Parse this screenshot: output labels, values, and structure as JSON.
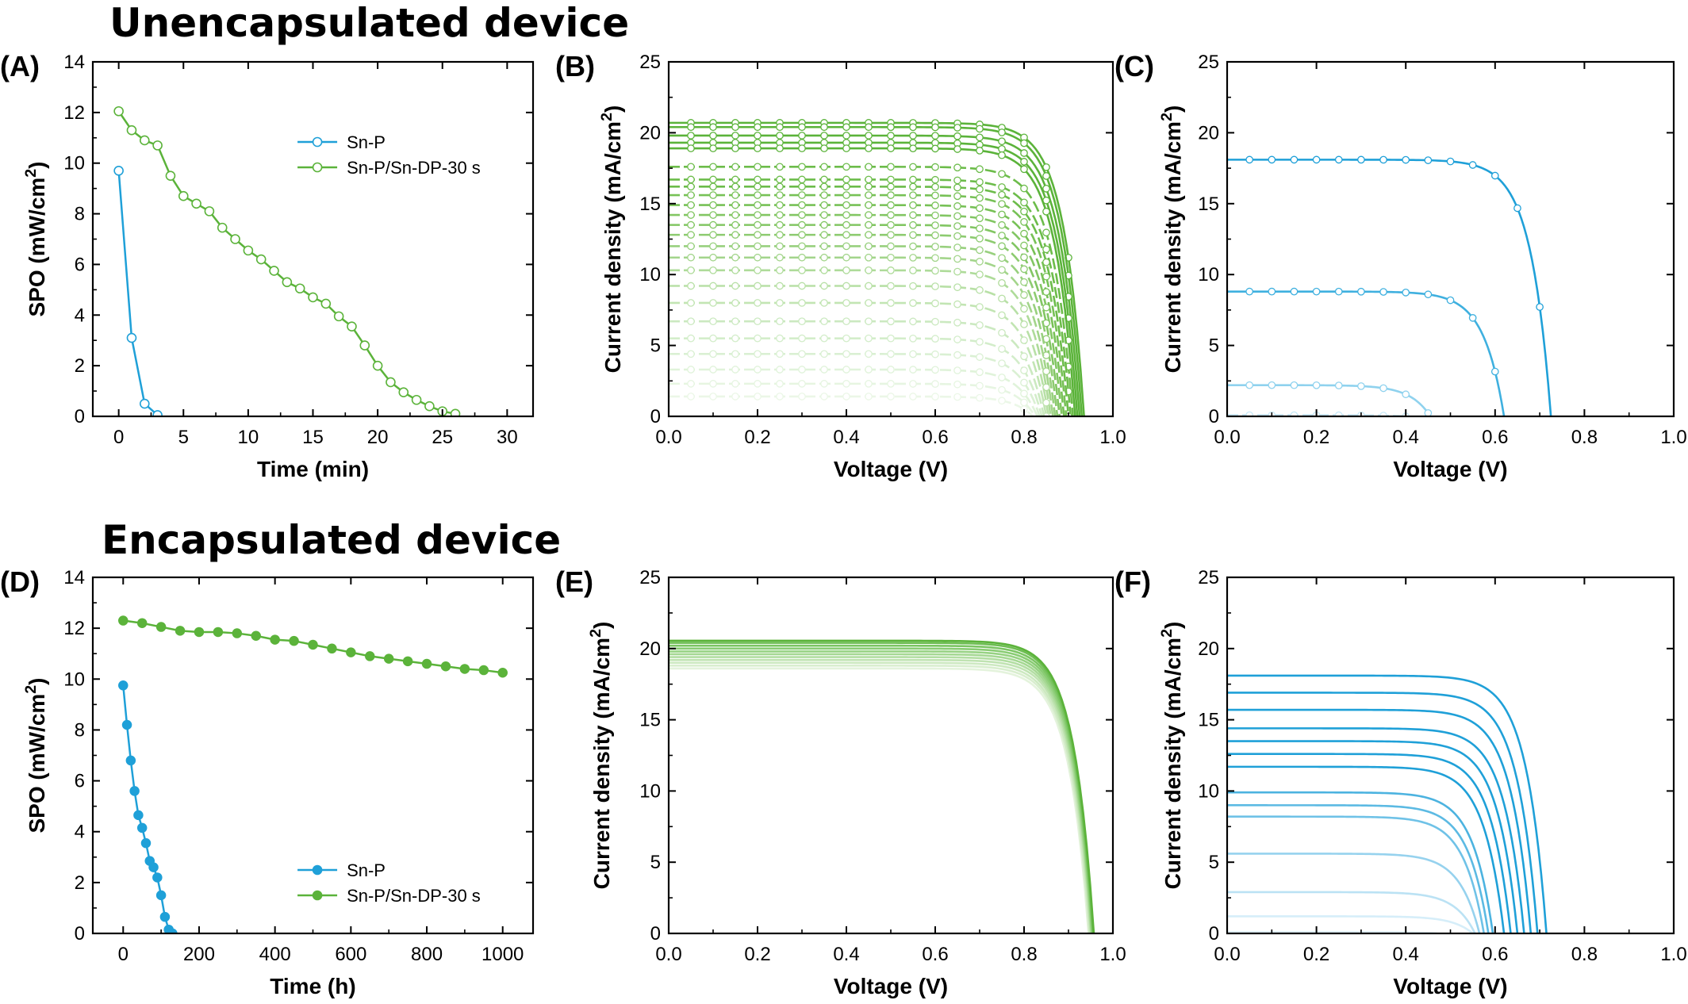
{
  "section_titles": {
    "top": "Unencapsulated device",
    "bottom": "Encapsulated device"
  },
  "colors": {
    "blue": "#1fa0d8",
    "green": "#5bb33a",
    "axis": "#000000"
  },
  "chart_data": [
    {
      "id": "A",
      "panel_label": "(A)",
      "type": "line",
      "xlabel": "Time (min)",
      "ylabel": "SPO (mW/cm²)",
      "xlim": [
        -2,
        32
      ],
      "ylim": [
        0,
        14
      ],
      "xticks": [
        0,
        5,
        10,
        15,
        20,
        25,
        30
      ],
      "yticks": [
        0,
        2,
        4,
        6,
        8,
        10,
        12,
        14
      ],
      "legend_position": "top-right",
      "markers": "open-circle",
      "series": [
        {
          "name": "Sn-P",
          "color": "#1fa0d8",
          "x": [
            0,
            1,
            2,
            3
          ],
          "y": [
            9.7,
            3.1,
            0.5,
            0.05
          ]
        },
        {
          "name": "Sn-P/Sn-DP-30 s",
          "color": "#5bb33a",
          "x": [
            0,
            1,
            2,
            3,
            4,
            5,
            6,
            7,
            8,
            9,
            10,
            11,
            12,
            13,
            14,
            15,
            16,
            17,
            18,
            19,
            20,
            21,
            22,
            23,
            24,
            25,
            26
          ],
          "y": [
            12.05,
            11.3,
            10.9,
            10.7,
            9.5,
            8.7,
            8.4,
            8.1,
            7.45,
            7.0,
            6.55,
            6.2,
            5.75,
            5.3,
            5.05,
            4.7,
            4.45,
            3.95,
            3.55,
            2.8,
            2.0,
            1.35,
            0.95,
            0.65,
            0.4,
            0.2,
            0.1
          ]
        }
      ]
    },
    {
      "id": "B",
      "panel_label": "(B)",
      "type": "line",
      "xlabel": "Voltage (V)",
      "ylabel": "Current density (mA/cm²)",
      "xlim": [
        0,
        1.0
      ],
      "ylim": [
        0,
        25
      ],
      "xticks": [
        0.0,
        0.2,
        0.4,
        0.6,
        0.8,
        1.0
      ],
      "yticks": [
        0,
        5,
        10,
        15,
        20,
        25
      ],
      "markers": "open-circle",
      "curve_model": "diode-like J-V sweep",
      "curves": [
        {
          "jsc": 20.7,
          "voc": 0.935,
          "color": "#5bb33a",
          "dashed": false
        },
        {
          "jsc": 20.4,
          "voc": 0.93,
          "color": "#5bb33a",
          "dashed": false
        },
        {
          "jsc": 19.8,
          "voc": 0.925,
          "color": "#5bb33a",
          "dashed": false
        },
        {
          "jsc": 19.3,
          "voc": 0.92,
          "color": "#5bb33a",
          "dashed": false
        },
        {
          "jsc": 18.9,
          "voc": 0.915,
          "color": "#5bb33a",
          "dashed": false
        },
        {
          "jsc": 17.6,
          "voc": 0.91,
          "color": "#6cbc4a",
          "dashed": true
        },
        {
          "jsc": 16.7,
          "voc": 0.905,
          "color": "#6cbc4a",
          "dashed": true
        },
        {
          "jsc": 16.2,
          "voc": 0.9,
          "color": "#6cbc4a",
          "dashed": true
        },
        {
          "jsc": 15.6,
          "voc": 0.895,
          "color": "#77c156",
          "dashed": true
        },
        {
          "jsc": 14.9,
          "voc": 0.89,
          "color": "#77c156",
          "dashed": true
        },
        {
          "jsc": 14.2,
          "voc": 0.885,
          "color": "#82c663",
          "dashed": true
        },
        {
          "jsc": 13.5,
          "voc": 0.88,
          "color": "#82c663",
          "dashed": true
        },
        {
          "jsc": 12.8,
          "voc": 0.875,
          "color": "#8dcb70",
          "dashed": true
        },
        {
          "jsc": 12.0,
          "voc": 0.87,
          "color": "#98d07e",
          "dashed": true
        },
        {
          "jsc": 11.2,
          "voc": 0.865,
          "color": "#a3d58b",
          "dashed": true
        },
        {
          "jsc": 10.3,
          "voc": 0.86,
          "color": "#aedb99",
          "dashed": true
        },
        {
          "jsc": 9.2,
          "voc": 0.855,
          "color": "#b8e0a6",
          "dashed": true
        },
        {
          "jsc": 8.0,
          "voc": 0.85,
          "color": "#c2e5b3",
          "dashed": true
        },
        {
          "jsc": 6.7,
          "voc": 0.845,
          "color": "#cbe9c0",
          "dashed": true
        },
        {
          "jsc": 5.5,
          "voc": 0.84,
          "color": "#d3edca",
          "dashed": true
        },
        {
          "jsc": 4.4,
          "voc": 0.835,
          "color": "#daf0d3",
          "dashed": true
        },
        {
          "jsc": 3.3,
          "voc": 0.83,
          "color": "#e0f3da",
          "dashed": true
        },
        {
          "jsc": 2.3,
          "voc": 0.825,
          "color": "#e6f5e1",
          "dashed": true
        },
        {
          "jsc": 1.4,
          "voc": 0.82,
          "color": "#ebf7e7",
          "dashed": true
        }
      ]
    },
    {
      "id": "C",
      "panel_label": "(C)",
      "type": "line",
      "xlabel": "Voltage (V)",
      "ylabel": "Current density (mA/cm²)",
      "xlim": [
        0,
        1.0
      ],
      "ylim": [
        0,
        25
      ],
      "xticks": [
        0.0,
        0.2,
        0.4,
        0.6,
        0.8,
        1.0
      ],
      "yticks": [
        0,
        5,
        10,
        15,
        20,
        25
      ],
      "markers": "open-circle",
      "curve_model": "diode-like J-V sweep",
      "curves": [
        {
          "jsc": 18.1,
          "voc": 0.725,
          "color": "#1fa0d8",
          "dashed": false
        },
        {
          "jsc": 8.8,
          "voc": 0.62,
          "color": "#3fb0df",
          "dashed": false
        },
        {
          "jsc": 2.2,
          "voc": 0.455,
          "color": "#8fd2ee",
          "dashed": false
        },
        {
          "jsc": 0.08,
          "voc": 0.4,
          "color": "#c7e8f6",
          "dashed": true
        }
      ]
    },
    {
      "id": "D",
      "panel_label": "(D)",
      "type": "line",
      "xlabel": "Time (h)",
      "ylabel": "SPO (mW/cm²)",
      "xlim": [
        -80,
        1080
      ],
      "ylim": [
        0,
        14
      ],
      "xticks": [
        0,
        200,
        400,
        600,
        800,
        1000
      ],
      "yticks": [
        0,
        2,
        4,
        6,
        8,
        10,
        12,
        14
      ],
      "legend_position": "bottom-right",
      "markers": "filled-circle",
      "series": [
        {
          "name": "Sn-P",
          "color": "#1fa0d8",
          "x": [
            0,
            10,
            20,
            30,
            40,
            50,
            60,
            70,
            80,
            90,
            100,
            110,
            120,
            130
          ],
          "y": [
            9.75,
            8.2,
            6.8,
            5.6,
            4.65,
            4.15,
            3.55,
            2.85,
            2.6,
            2.2,
            1.5,
            0.65,
            0.15,
            0.0
          ]
        },
        {
          "name": "Sn-P/Sn-DP-30 s",
          "color": "#5bb33a",
          "x": [
            0,
            50,
            100,
            150,
            200,
            250,
            300,
            350,
            400,
            450,
            500,
            550,
            600,
            650,
            700,
            750,
            800,
            850,
            900,
            950,
            1000
          ],
          "y": [
            12.3,
            12.2,
            12.05,
            11.9,
            11.85,
            11.85,
            11.8,
            11.7,
            11.55,
            11.5,
            11.35,
            11.2,
            11.05,
            10.9,
            10.8,
            10.7,
            10.6,
            10.5,
            10.4,
            10.35,
            10.25
          ]
        }
      ]
    },
    {
      "id": "E",
      "panel_label": "(E)",
      "type": "line",
      "xlabel": "Voltage (V)",
      "ylabel": "Current density (mA/cm²)",
      "xlim": [
        0,
        1.0
      ],
      "ylim": [
        0,
        25
      ],
      "xticks": [
        0.0,
        0.2,
        0.4,
        0.6,
        0.8,
        1.0
      ],
      "yticks": [
        0,
        5,
        10,
        15,
        20,
        25
      ],
      "markers": "none",
      "curve_model": "diode-like J-V sweep",
      "curves": [
        {
          "jsc": 18.6,
          "voc": 0.945,
          "color": "#e4f3dc",
          "dashed": false
        },
        {
          "jsc": 18.8,
          "voc": 0.947,
          "color": "#d9eecf",
          "dashed": false
        },
        {
          "jsc": 19.0,
          "voc": 0.948,
          "color": "#cde9c1",
          "dashed": false
        },
        {
          "jsc": 19.2,
          "voc": 0.95,
          "color": "#c0e3b2",
          "dashed": false
        },
        {
          "jsc": 19.4,
          "voc": 0.951,
          "color": "#b3dea3",
          "dashed": false
        },
        {
          "jsc": 19.6,
          "voc": 0.952,
          "color": "#a5d893",
          "dashed": false
        },
        {
          "jsc": 19.8,
          "voc": 0.953,
          "color": "#97d283",
          "dashed": false
        },
        {
          "jsc": 20.0,
          "voc": 0.954,
          "color": "#89cc73",
          "dashed": false
        },
        {
          "jsc": 20.2,
          "voc": 0.955,
          "color": "#7bc563",
          "dashed": false
        },
        {
          "jsc": 20.4,
          "voc": 0.956,
          "color": "#6dbd52",
          "dashed": false
        },
        {
          "jsc": 20.55,
          "voc": 0.957,
          "color": "#5bb33a",
          "dashed": false
        }
      ]
    },
    {
      "id": "F",
      "panel_label": "(F)",
      "type": "line",
      "xlabel": "Voltage (V)",
      "ylabel": "Current density (mA/cm²)",
      "xlim": [
        0,
        1.0
      ],
      "ylim": [
        0,
        25
      ],
      "xticks": [
        0.0,
        0.2,
        0.4,
        0.6,
        0.8,
        1.0
      ],
      "yticks": [
        0,
        5,
        10,
        15,
        20,
        25
      ],
      "markers": "none",
      "curve_model": "diode-like J-V sweep",
      "curves": [
        {
          "jsc": 18.1,
          "voc": 0.715,
          "color": "#1fa0d8",
          "dashed": false
        },
        {
          "jsc": 16.9,
          "voc": 0.695,
          "color": "#1fa0d8",
          "dashed": false
        },
        {
          "jsc": 15.7,
          "voc": 0.68,
          "color": "#1fa0d8",
          "dashed": false
        },
        {
          "jsc": 14.4,
          "voc": 0.665,
          "color": "#1fa0d8",
          "dashed": false
        },
        {
          "jsc": 13.5,
          "voc": 0.65,
          "color": "#1fa0d8",
          "dashed": false
        },
        {
          "jsc": 12.6,
          "voc": 0.635,
          "color": "#1fa0d8",
          "dashed": false
        },
        {
          "jsc": 11.7,
          "voc": 0.62,
          "color": "#1fa0d8",
          "dashed": false
        },
        {
          "jsc": 9.9,
          "voc": 0.595,
          "color": "#4cb3e0",
          "dashed": false
        },
        {
          "jsc": 9.0,
          "voc": 0.585,
          "color": "#5cbae3",
          "dashed": false
        },
        {
          "jsc": 8.2,
          "voc": 0.575,
          "color": "#6fc2e7",
          "dashed": false
        },
        {
          "jsc": 5.6,
          "voc": 0.565,
          "color": "#96d2ee",
          "dashed": false
        },
        {
          "jsc": 2.9,
          "voc": 0.555,
          "color": "#bbe2f4",
          "dashed": false
        },
        {
          "jsc": 1.2,
          "voc": 0.55,
          "color": "#d6eef9",
          "dashed": false
        },
        {
          "jsc": 0.1,
          "voc": 0.47,
          "color": "#e4f3fa",
          "dashed": false
        }
      ]
    }
  ]
}
